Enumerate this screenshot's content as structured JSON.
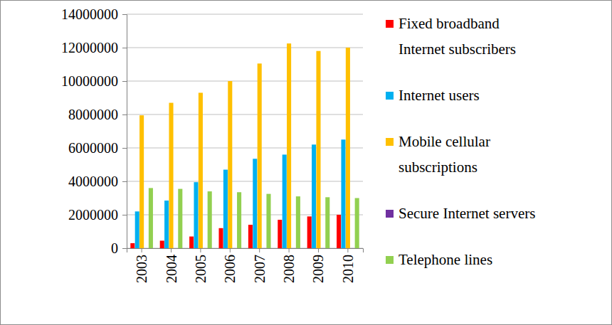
{
  "chart_data": {
    "type": "bar",
    "categories": [
      "2003",
      "2004",
      "2005",
      "2006",
      "2007",
      "2008",
      "2009",
      "2010"
    ],
    "series": [
      {
        "name": "Fixed broadband Internet subscribers",
        "color": "#ff0000",
        "values": [
          300000,
          450000,
          700000,
          1200000,
          1400000,
          1700000,
          1900000,
          2000000
        ]
      },
      {
        "name": "Internet users",
        "color": "#00b0f0",
        "values": [
          2200000,
          2850000,
          3950000,
          4700000,
          5350000,
          5600000,
          6200000,
          6500000
        ]
      },
      {
        "name": "Mobile cellular subscriptions",
        "color": "#ffc000",
        "values": [
          7950000,
          8700000,
          9300000,
          10000000,
          11050000,
          12250000,
          11800000,
          12000000
        ]
      },
      {
        "name": "Secure Internet servers",
        "color": "#7030a0",
        "values": [
          400,
          600,
          900,
          1200,
          1500,
          1800,
          2100,
          2500
        ]
      },
      {
        "name": "Telephone lines",
        "color": "#92d050",
        "values": [
          3600000,
          3550000,
          3400000,
          3350000,
          3250000,
          3100000,
          3050000,
          3000000
        ]
      }
    ],
    "ylim": [
      0,
      14000000
    ],
    "yticks": [
      0,
      2000000,
      4000000,
      6000000,
      8000000,
      10000000,
      12000000,
      14000000
    ],
    "grid": true,
    "legend": "right"
  }
}
